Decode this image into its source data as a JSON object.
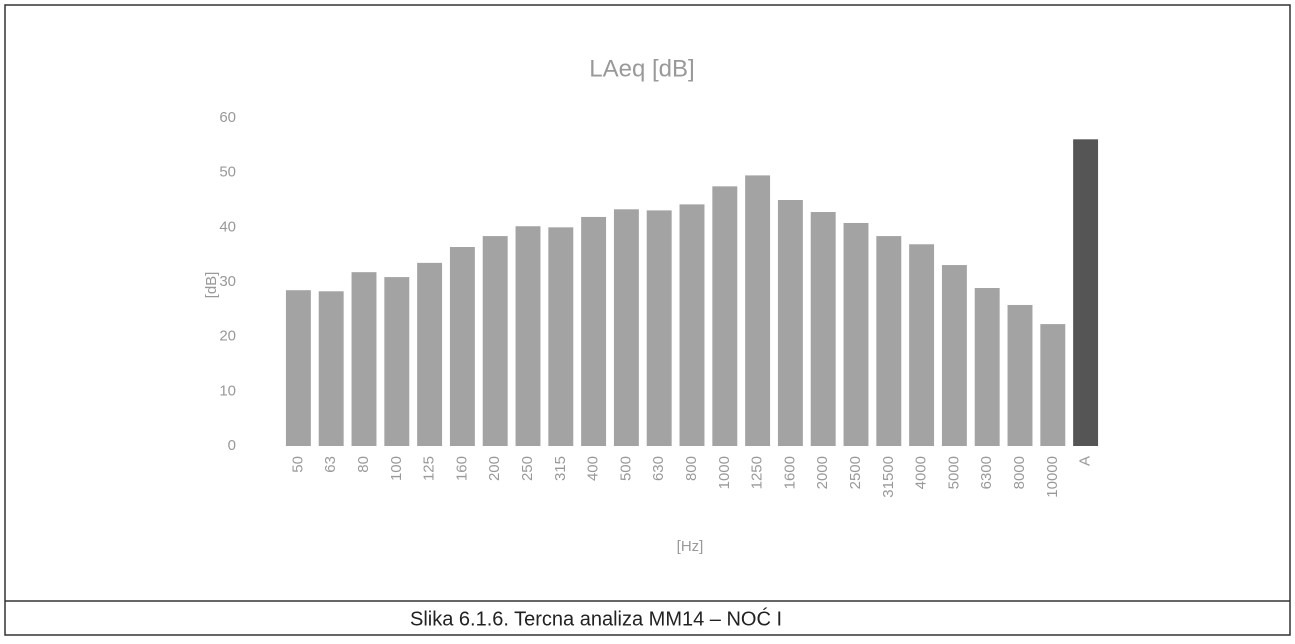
{
  "chart_data": {
    "type": "bar",
    "title": "LAeq [dB]",
    "ylabel": "[dB]",
    "xlabel": "[Hz]",
    "caption": "Slika 6.1.6. Tercna analiza MM14 – NOĆ I",
    "categories": [
      "50",
      "63",
      "80",
      "100",
      "125",
      "160",
      "200",
      "250",
      "315",
      "400",
      "500",
      "630",
      "800",
      "1000",
      "1250",
      "1600",
      "2000",
      "2500",
      "31500",
      "4000",
      "5000",
      "6300",
      "8000",
      "10000",
      "A"
    ],
    "values": [
      28.5,
      28.3,
      31.8,
      30.9,
      33.5,
      36.4,
      38.4,
      40.2,
      40,
      41.9,
      43.3,
      43.1,
      44.2,
      47.5,
      49.5,
      45,
      42.8,
      40.8,
      38.4,
      36.9,
      33.1,
      28.9,
      25.8,
      22.3,
      56.1
    ],
    "colors": [
      "#a3a3a3",
      "#a3a3a3",
      "#a3a3a3",
      "#a3a3a3",
      "#a3a3a3",
      "#a3a3a3",
      "#a3a3a3",
      "#a3a3a3",
      "#a3a3a3",
      "#a3a3a3",
      "#a3a3a3",
      "#a3a3a3",
      "#a3a3a3",
      "#a3a3a3",
      "#a3a3a3",
      "#a3a3a3",
      "#a3a3a3",
      "#a3a3a3",
      "#a3a3a3",
      "#a3a3a3",
      "#a3a3a3",
      "#a3a3a3",
      "#a3a3a3",
      "#a3a3a3",
      "#555555"
    ],
    "ylim": [
      0,
      60
    ],
    "yticks": [
      0,
      10,
      20,
      30,
      40,
      50,
      60
    ],
    "grid": false
  }
}
